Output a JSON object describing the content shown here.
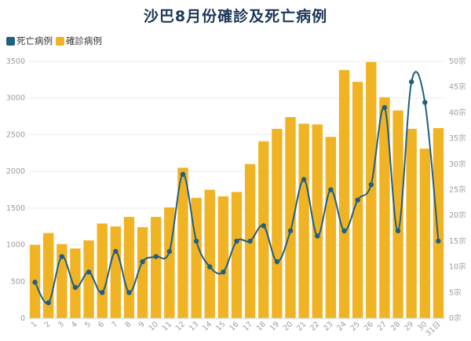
{
  "chart_data": {
    "type": "bar+line",
    "title": "沙巴8月份確診及死亡病例",
    "categories": [
      "1",
      "2",
      "3",
      "4",
      "5",
      "6",
      "7",
      "8",
      "9",
      "10",
      "11",
      "12",
      "13",
      "14",
      "15",
      "16",
      "17",
      "18",
      "19",
      "20",
      "21",
      "22",
      "23",
      "24",
      "25",
      "26",
      "27",
      "28",
      "29",
      "30",
      "31日"
    ],
    "series": [
      {
        "name": "確診病例",
        "type": "bar",
        "axis": "left",
        "color": "#F0B323",
        "values": [
          1000,
          1160,
          1010,
          950,
          1060,
          1290,
          1250,
          1380,
          1240,
          1380,
          1510,
          2050,
          1640,
          1750,
          1660,
          1720,
          2100,
          2410,
          2580,
          2740,
          2650,
          2640,
          2470,
          3380,
          3220,
          3490,
          3010,
          2830,
          2580,
          2310,
          2590
        ]
      },
      {
        "name": "死亡病例",
        "type": "line",
        "axis": "right",
        "color": "#1F5F84",
        "values": [
          7,
          3,
          12,
          6,
          9,
          5,
          13,
          5,
          11,
          12,
          13,
          28,
          15,
          10,
          9,
          15,
          15,
          18,
          11,
          17,
          27,
          16,
          25,
          17,
          23,
          26,
          41,
          17,
          46,
          42,
          15
        ]
      }
    ],
    "y_left": {
      "min": 0,
      "max": 3500,
      "ticks": [
        "0",
        "500",
        "1000",
        "1500",
        "2000",
        "2500",
        "3000",
        "3500"
      ]
    },
    "y_right": {
      "min": 0,
      "max": 50,
      "ticks": [
        "0宗",
        "5宗",
        "10宗",
        "15宗",
        "20宗",
        "25宗",
        "30宗",
        "35宗",
        "40宗",
        "45宗",
        "50宗"
      ]
    },
    "grid": true,
    "legend": "top-left"
  }
}
